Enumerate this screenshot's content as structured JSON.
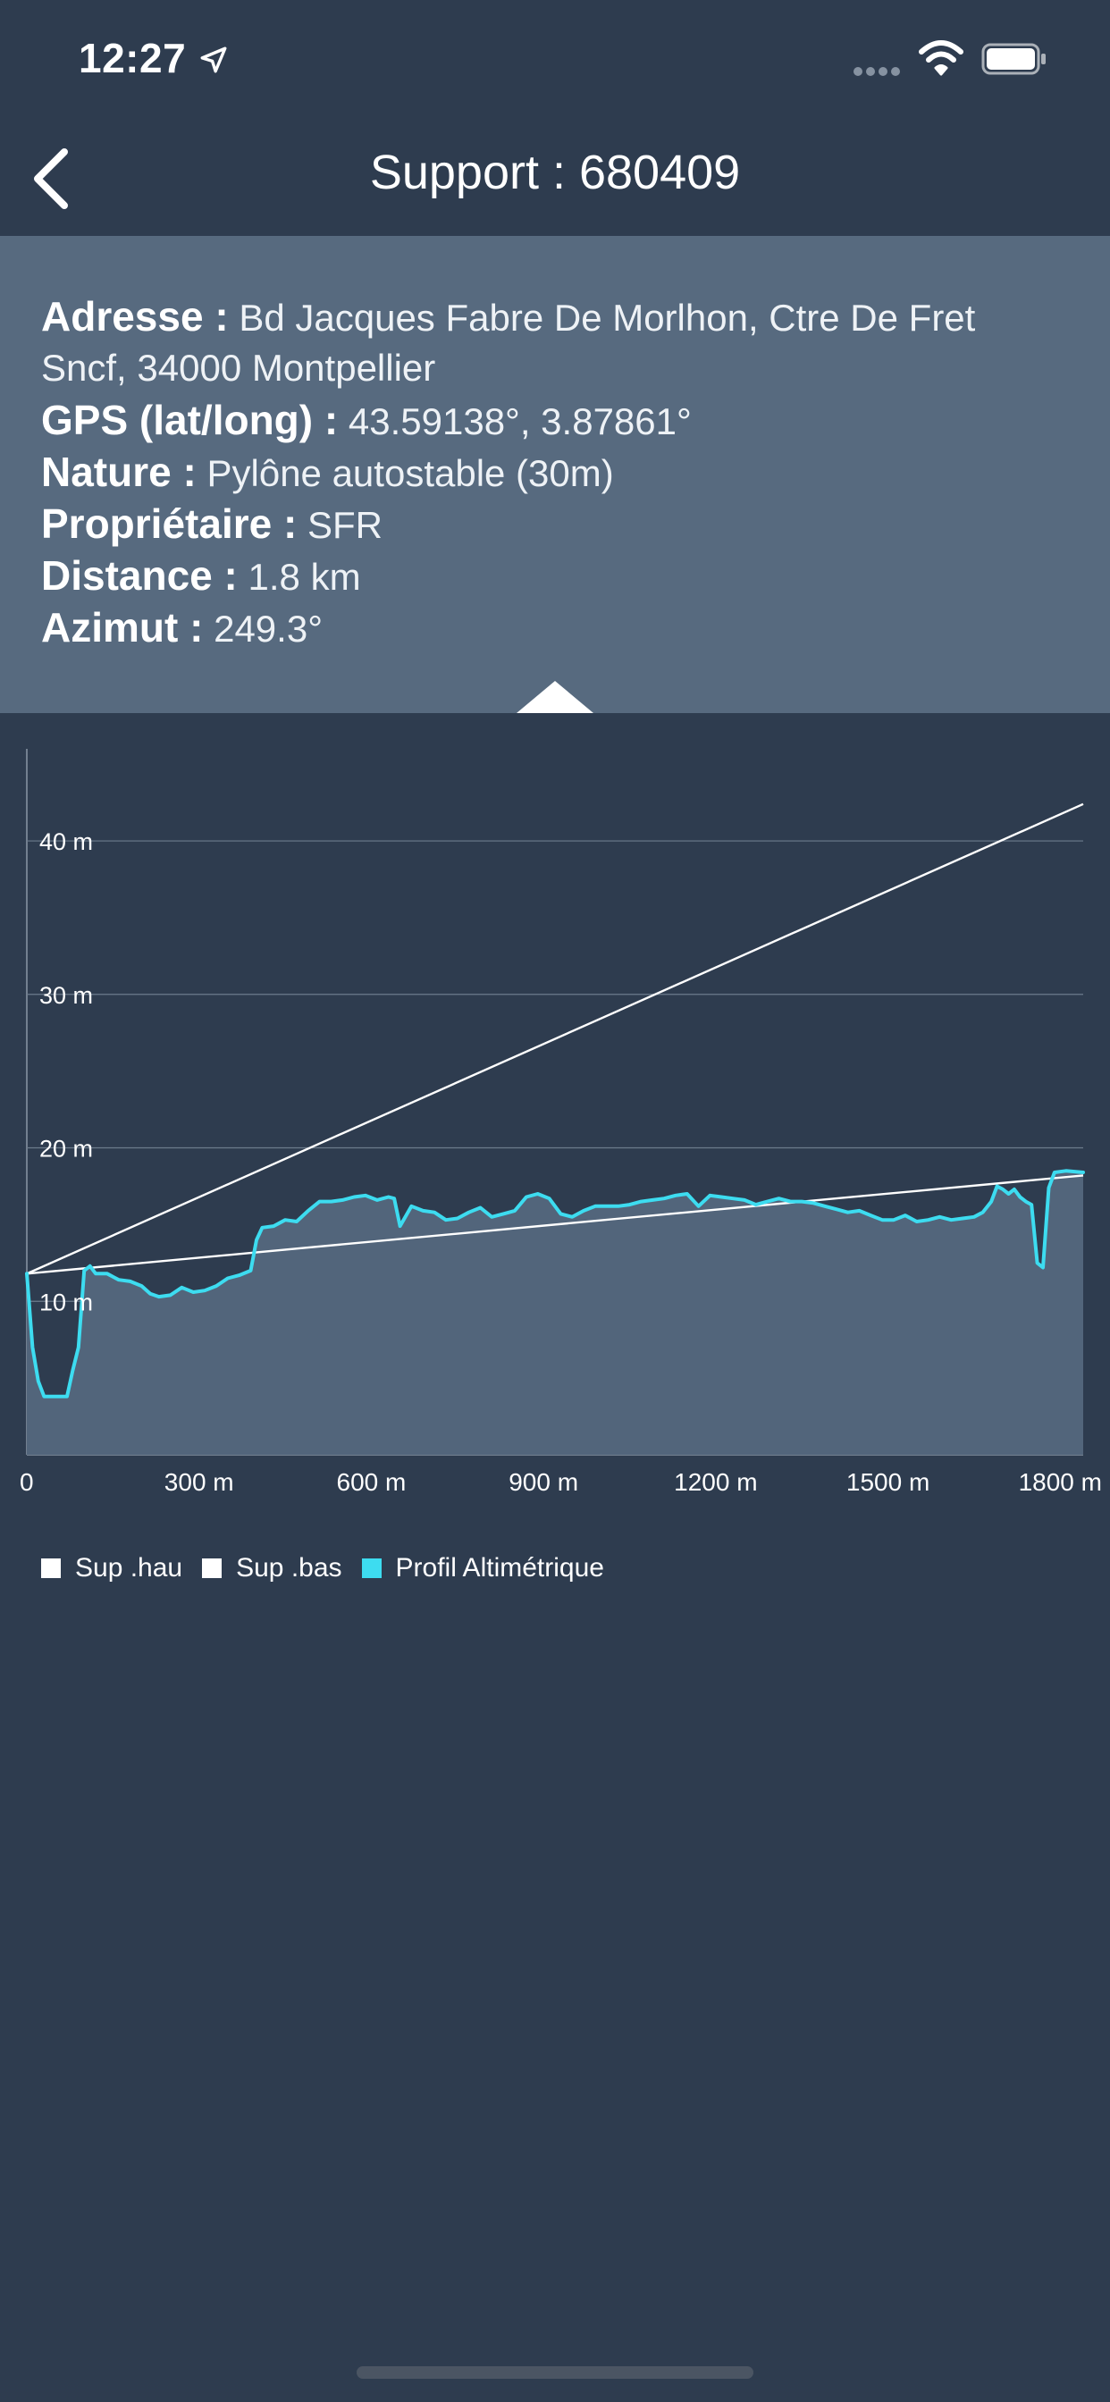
{
  "status_bar": {
    "time": "12:27"
  },
  "nav": {
    "title": "Support : 680409"
  },
  "info": {
    "address_label": "Adresse :",
    "address_line1": "Bd Jacques Fabre De Morlhon, Ctre De Fret",
    "address_line2": "Sncf, 34000 Montpellier",
    "gps_label": "GPS (lat/long) :",
    "gps_value": "43.59138°, 3.87861°",
    "nature_label": "Nature :",
    "nature_value": "Pylône autostable (30m)",
    "owner_label": "Propriétaire :",
    "owner_value": "SFR",
    "distance_label": "Distance :",
    "distance_value": "1.8 km",
    "azimut_label": "Azimut :",
    "azimut_value": "249.3°"
  },
  "colors": {
    "background": "#2e3c4f",
    "panel": "#576a7f",
    "profile": "#3ddcf0",
    "sup_line": "#ffffff",
    "area_fill": "#52657b"
  },
  "chart_data": {
    "type": "line",
    "x_tick_labels": [
      "0",
      "300 m",
      "600 m",
      "900 m",
      "1200 m",
      "1500 m",
      "1800 m"
    ],
    "x_ticks": [
      0,
      300,
      600,
      900,
      1200,
      1500,
      1800
    ],
    "y_tick_labels": [
      "10 m",
      "20 m",
      "30 m",
      "40 m"
    ],
    "y_ticks": [
      10,
      20,
      30,
      40
    ],
    "xlim": [
      0,
      1840
    ],
    "ylim": [
      0,
      46
    ],
    "grid": true,
    "legend_position": "bottom-left",
    "series": [
      {
        "name": "Sup .hau",
        "color": "#ffffff",
        "x": [
          0,
          1840
        ],
        "y": [
          11.8,
          42.4
        ]
      },
      {
        "name": "Sup .bas",
        "color": "#ffffff",
        "x": [
          0,
          1840
        ],
        "y": [
          11.8,
          18.2
        ]
      },
      {
        "name": "Profil Altimétrique",
        "color": "#3ddcf0",
        "x": [
          0,
          10,
          20,
          30,
          40,
          55,
          70,
          80,
          90,
          100,
          110,
          120,
          140,
          160,
          180,
          200,
          215,
          230,
          250,
          270,
          290,
          310,
          330,
          350,
          370,
          390,
          400,
          410,
          430,
          450,
          470,
          490,
          510,
          530,
          550,
          570,
          590,
          610,
          630,
          640,
          650,
          670,
          690,
          710,
          730,
          750,
          770,
          790,
          810,
          830,
          850,
          870,
          890,
          910,
          930,
          950,
          970,
          990,
          1010,
          1030,
          1050,
          1070,
          1090,
          1110,
          1130,
          1150,
          1170,
          1190,
          1210,
          1230,
          1250,
          1270,
          1290,
          1310,
          1330,
          1350,
          1370,
          1390,
          1410,
          1430,
          1450,
          1470,
          1490,
          1510,
          1530,
          1550,
          1570,
          1590,
          1610,
          1630,
          1650,
          1665,
          1680,
          1690,
          1700,
          1710,
          1720,
          1730,
          1740,
          1750,
          1760,
          1770,
          1780,
          1790,
          1810,
          1840
        ],
        "y": [
          11.8,
          7.0,
          4.8,
          3.8,
          3.8,
          3.8,
          3.8,
          5.5,
          7.0,
          12.0,
          12.3,
          11.8,
          11.8,
          11.4,
          11.3,
          11.0,
          10.5,
          10.3,
          10.4,
          10.9,
          10.6,
          10.7,
          11.0,
          11.5,
          11.7,
          12.0,
          14.0,
          14.8,
          14.9,
          15.3,
          15.2,
          15.9,
          16.5,
          16.5,
          16.6,
          16.8,
          16.9,
          16.6,
          16.8,
          16.7,
          14.9,
          16.2,
          15.9,
          15.8,
          15.3,
          15.4,
          15.8,
          16.1,
          15.5,
          15.7,
          15.9,
          16.8,
          17.0,
          16.7,
          15.7,
          15.5,
          15.9,
          16.2,
          16.2,
          16.2,
          16.3,
          16.5,
          16.6,
          16.7,
          16.9,
          17.0,
          16.2,
          16.9,
          16.8,
          16.7,
          16.6,
          16.3,
          16.5,
          16.7,
          16.5,
          16.5,
          16.4,
          16.2,
          16.0,
          15.8,
          15.9,
          15.6,
          15.3,
          15.3,
          15.6,
          15.2,
          15.3,
          15.5,
          15.3,
          15.4,
          15.5,
          15.8,
          16.5,
          17.5,
          17.3,
          17.0,
          17.3,
          16.8,
          16.5,
          16.3,
          12.5,
          12.2,
          17.4,
          18.4,
          18.5,
          18.4
        ]
      }
    ]
  }
}
